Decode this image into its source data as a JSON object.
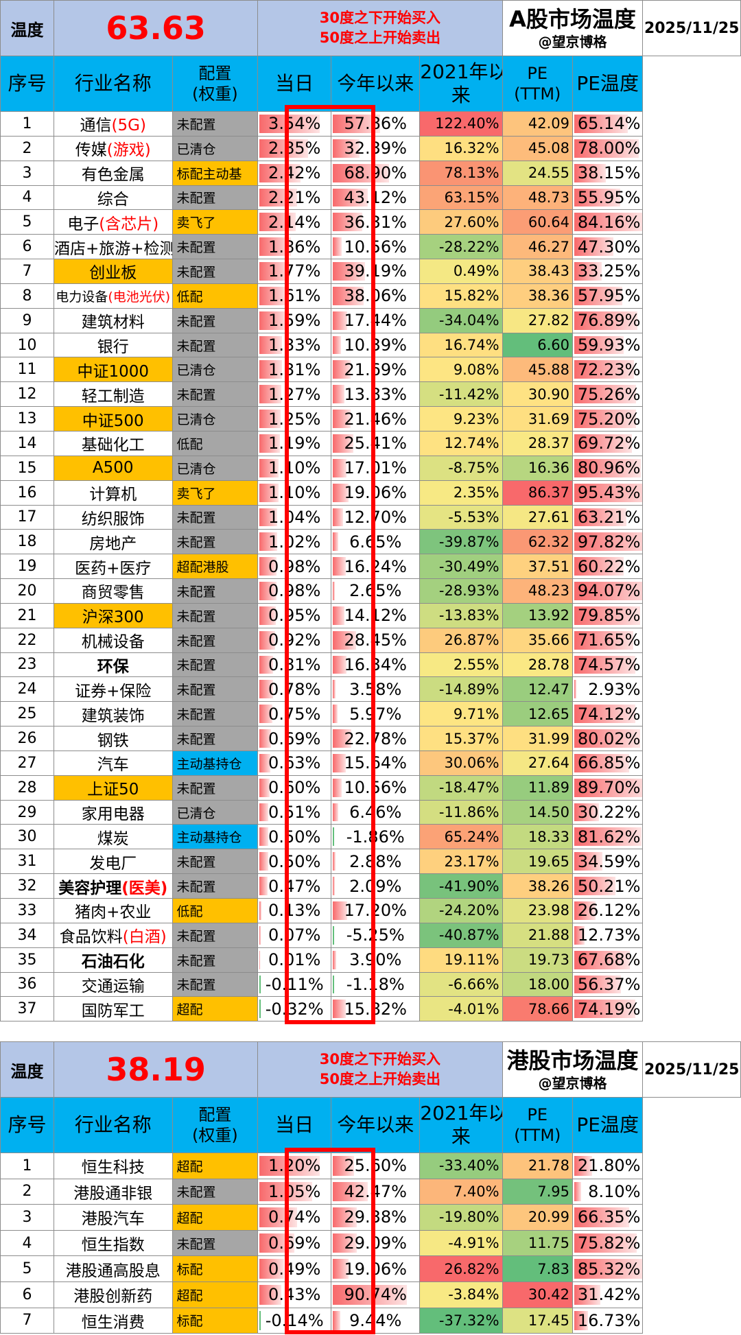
{
  "colors": {
    "header_blue": "#00b0f0",
    "lavender": "#b4c6e7",
    "orange": "#ffc000",
    "gray": "#a6a6a6",
    "red": "#ff0000",
    "bar_red": "#f8696b"
  },
  "a_market": {
    "label": "温度",
    "value": "63.63",
    "rule_line1": "30度之下开始买入",
    "rule_line2": "50度之上开始卖出",
    "title": "A股市场温度",
    "author": "@望京博格",
    "date": "2025/11/25",
    "headers": {
      "idx": "序号",
      "name": "行业名称",
      "cfg1": "配置",
      "cfg2": "(权重)",
      "day": "当日",
      "ytd": "今年以来",
      "r21a": "2021年以",
      "r21b": "来",
      "pe1": "PE",
      "pe2": "(TTM)",
      "pet": "PE温度"
    },
    "rows": [
      {
        "idx": "1",
        "name": "通信",
        "name_red": "(5G)",
        "name_bg": "",
        "cfg": "未配置",
        "cfg_bg": "gray",
        "day": "3.54%",
        "day_v": 3.54,
        "ytd": "57.86%",
        "ytd_v": 57.86,
        "r21": "122.40%",
        "r21_c": "#f8696b",
        "pe": "42.09",
        "pe_c": "#fdc47d",
        "pet": "65.14%",
        "pet_v": 65.14
      },
      {
        "idx": "2",
        "name": "传媒",
        "name_red": "(游戏)",
        "name_bg": "",
        "cfg": "已清仓",
        "cfg_bg": "gray",
        "day": "2.85%",
        "day_v": 2.85,
        "ytd": "32.39%",
        "ytd_v": 32.39,
        "r21": "16.32%",
        "r21_c": "#fedf81",
        "pe": "45.08",
        "pe_c": "#fdbc7b",
        "pet": "78.00%",
        "pet_v": 78.0
      },
      {
        "idx": "3",
        "name": "有色金属",
        "name_red": "",
        "name_bg": "",
        "cfg": "标配主动基",
        "cfg_bg": "orange",
        "day": "2.42%",
        "day_v": 2.42,
        "ytd": "68.90%",
        "ytd_v": 68.9,
        "r21": "78.13%",
        "r21_c": "#fa9473",
        "pe": "24.55",
        "pe_c": "#e3e383",
        "pet": "38.15%",
        "pet_v": 38.15
      },
      {
        "idx": "4",
        "name": "综合",
        "name_red": "",
        "name_bg": "",
        "cfg": "未配置",
        "cfg_bg": "gray",
        "day": "2.21%",
        "day_v": 2.21,
        "ytd": "43.12%",
        "ytd_v": 43.12,
        "r21": "63.15%",
        "r21_c": "#fba476",
        "pe": "48.73",
        "pe_c": "#fdb27a",
        "pet": "55.95%",
        "pet_v": 55.95
      },
      {
        "idx": "5",
        "name": "电子",
        "name_red": "(含芯片)",
        "name_bg": "",
        "cfg": "卖飞了",
        "cfg_bg": "orange",
        "day": "2.14%",
        "day_v": 2.14,
        "ytd": "36.31%",
        "ytd_v": 36.31,
        "r21": "27.60%",
        "r21_c": "#fdcb7d",
        "pe": "60.64",
        "pe_c": "#fb9d75",
        "pet": "84.16%",
        "pet_v": 84.16
      },
      {
        "idx": "6",
        "name": "酒店+旅游+检测",
        "name_red": "",
        "name_bg": "",
        "cfg": "未配置",
        "cfg_bg": "gray",
        "day": "1.86%",
        "day_v": 1.86,
        "ytd": "10.56%",
        "ytd_v": 10.56,
        "r21": "-28.22%",
        "r21_c": "#a6d17f",
        "pe": "46.27",
        "pe_c": "#fdb97b",
        "pet": "47.30%",
        "pet_v": 47.3
      },
      {
        "idx": "7",
        "name": "创业板",
        "name_red": "",
        "name_bg": "orange",
        "cfg": "未配置",
        "cfg_bg": "gray",
        "day": "1.77%",
        "day_v": 1.77,
        "ytd": "39.19%",
        "ytd_v": 39.19,
        "r21": "0.49%",
        "r21_c": "#f4e884",
        "pe": "38.43",
        "pe_c": "#fece7f",
        "pet": "33.25%",
        "pet_v": 33.25
      },
      {
        "idx": "8",
        "name": "电力设备",
        "name_red": "(电池光伏)",
        "name_bg": "",
        "small": true,
        "cfg": "低配",
        "cfg_bg": "orange",
        "day": "1.61%",
        "day_v": 1.61,
        "ytd": "38.06%",
        "ytd_v": 38.06,
        "r21": "15.82%",
        "r21_c": "#fee082",
        "pe": "38.36",
        "pe_c": "#fece7f",
        "pet": "57.95%",
        "pet_v": 57.95
      },
      {
        "idx": "9",
        "name": "建筑材料",
        "name_red": "",
        "name_bg": "",
        "cfg": "未配置",
        "cfg_bg": "gray",
        "day": "1.59%",
        "day_v": 1.59,
        "ytd": "17.44%",
        "ytd_v": 17.44,
        "r21": "-34.04%",
        "r21_c": "#94cb7e",
        "pe": "27.82",
        "pe_c": "#f7e784",
        "pet": "76.89%",
        "pet_v": 76.89
      },
      {
        "idx": "10",
        "name": "银行",
        "name_red": "",
        "name_bg": "",
        "cfg": "未配置",
        "cfg_bg": "gray",
        "day": "1.33%",
        "day_v": 1.33,
        "ytd": "10.39%",
        "ytd_v": 10.39,
        "r21": "16.74%",
        "r21_c": "#fedf81",
        "pe": "6.60",
        "pe_c": "#63be7b",
        "pet": "59.93%",
        "pet_v": 59.93
      },
      {
        "idx": "11",
        "name": "中证1000",
        "name_red": "",
        "name_bg": "orange",
        "cfg": "已清仓",
        "cfg_bg": "gray",
        "day": "1.31%",
        "day_v": 1.31,
        "ytd": "21.69%",
        "ytd_v": 21.69,
        "r21": "9.08%",
        "r21_c": "#fde583",
        "pe": "45.88",
        "pe_c": "#fdba7b",
        "pet": "72.23%",
        "pet_v": 72.23
      },
      {
        "idx": "12",
        "name": "轻工制造",
        "name_red": "",
        "name_bg": "",
        "cfg": "未配置",
        "cfg_bg": "gray",
        "day": "1.27%",
        "day_v": 1.27,
        "ytd": "13.83%",
        "ytd_v": 13.83,
        "r21": "-11.42%",
        "r21_c": "#d5df81",
        "pe": "30.90",
        "pe_c": "#fee283",
        "pet": "75.26%",
        "pet_v": 75.26
      },
      {
        "idx": "13",
        "name": "中证500",
        "name_red": "",
        "name_bg": "orange",
        "cfg": "已清仓",
        "cfg_bg": "gray",
        "day": "1.25%",
        "day_v": 1.25,
        "ytd": "21.46%",
        "ytd_v": 21.46,
        "r21": "9.23%",
        "r21_c": "#fde583",
        "pe": "31.69",
        "pe_c": "#fedf81",
        "pet": "75.20%",
        "pet_v": 75.2
      },
      {
        "idx": "14",
        "name": "基础化工",
        "name_red": "",
        "name_bg": "",
        "cfg": "低配",
        "cfg_bg": "gray",
        "day": "1.19%",
        "day_v": 1.19,
        "ytd": "25.41%",
        "ytd_v": 25.41,
        "r21": "12.74%",
        "r21_c": "#fee282",
        "pe": "28.37",
        "pe_c": "#f9e884",
        "pet": "69.72%",
        "pet_v": 69.72
      },
      {
        "idx": "15",
        "name": "A500",
        "name_red": "",
        "name_bg": "orange",
        "cfg": "已清仓",
        "cfg_bg": "gray",
        "day": "1.10%",
        "day_v": 1.1,
        "ytd": "17.01%",
        "ytd_v": 17.01,
        "r21": "-8.75%",
        "r21_c": "#dce182",
        "pe": "16.36",
        "pe_c": "#b7d680",
        "pet": "80.96%",
        "pet_v": 80.96
      },
      {
        "idx": "16",
        "name": "计算机",
        "name_red": "",
        "name_bg": "",
        "cfg": "卖飞了",
        "cfg_bg": "orange",
        "day": "1.10%",
        "day_v": 1.1,
        "ytd": "19.06%",
        "ytd_v": 19.06,
        "r21": "2.35%",
        "r21_c": "#f7e984",
        "pe": "86.37",
        "pe_c": "#f8696b",
        "pet": "95.43%",
        "pet_v": 95.43
      },
      {
        "idx": "17",
        "name": "纺织服饰",
        "name_red": "",
        "name_bg": "",
        "cfg": "未配置",
        "cfg_bg": "gray",
        "day": "1.04%",
        "day_v": 1.04,
        "ytd": "12.70%",
        "ytd_v": 12.7,
        "r21": "-5.53%",
        "r21_c": "#e5e483",
        "pe": "27.61",
        "pe_c": "#f5e784",
        "pet": "63.21%",
        "pet_v": 63.21
      },
      {
        "idx": "18",
        "name": "房地产",
        "name_red": "",
        "name_bg": "",
        "cfg": "未配置",
        "cfg_bg": "gray",
        "day": "1.02%",
        "day_v": 1.02,
        "ytd": "6.65%",
        "ytd_v": 6.65,
        "r21": "-39.87%",
        "r21_c": "#7ec47d",
        "pe": "62.32",
        "pe_c": "#fa9874",
        "pet": "97.82%",
        "pet_v": 97.82
      },
      {
        "idx": "19",
        "name": "医药+医疗",
        "name_red": "",
        "name_bg": "",
        "cfg": "超配港股",
        "cfg_bg": "orange",
        "day": "0.98%",
        "day_v": 0.98,
        "ytd": "16.24%",
        "ytd_v": 16.24,
        "r21": "-30.49%",
        "r21_c": "#a0cf7f",
        "pe": "37.51",
        "pe_c": "#fed17f",
        "pet": "60.22%",
        "pet_v": 60.22
      },
      {
        "idx": "20",
        "name": "商贸零售",
        "name_red": "",
        "name_bg": "",
        "cfg": "未配置",
        "cfg_bg": "gray",
        "day": "0.98%",
        "day_v": 0.98,
        "ytd": "2.65%",
        "ytd_v": 2.65,
        "r21": "-28.93%",
        "r21_c": "#a4d07f",
        "pe": "48.23",
        "pe_c": "#fdb37a",
        "pet": "94.07%",
        "pet_v": 94.07
      },
      {
        "idx": "21",
        "name": "沪深300",
        "name_red": "",
        "name_bg": "orange",
        "cfg": "未配置",
        "cfg_bg": "gray",
        "day": "0.95%",
        "day_v": 0.95,
        "ytd": "14.12%",
        "ytd_v": 14.12,
        "r21": "-13.83%",
        "r21_c": "#cedd81",
        "pe": "13.92",
        "pe_c": "#a4d07f",
        "pet": "79.85%",
        "pet_v": 79.85
      },
      {
        "idx": "22",
        "name": "机械设备",
        "name_red": "",
        "name_bg": "",
        "cfg": "未配置",
        "cfg_bg": "gray",
        "day": "0.92%",
        "day_v": 0.92,
        "ytd": "28.45%",
        "ytd_v": 28.45,
        "r21": "26.87%",
        "r21_c": "#fdcb7d",
        "pe": "35.66",
        "pe_c": "#fed680",
        "pet": "71.65%",
        "pet_v": 71.65
      },
      {
        "idx": "23",
        "name": "环保",
        "name_red": "",
        "name_bg": "",
        "bold": true,
        "cfg": "未配置",
        "cfg_bg": "gray",
        "day": "0.81%",
        "day_v": 0.81,
        "ytd": "16.34%",
        "ytd_v": 16.34,
        "r21": "2.55%",
        "r21_c": "#f7e984",
        "pe": "28.78",
        "pe_c": "#fae884",
        "pet": "74.57%",
        "pet_v": 74.57
      },
      {
        "idx": "24",
        "name": "证券+保险",
        "name_red": "",
        "name_bg": "",
        "cfg": "未配置",
        "cfg_bg": "gray",
        "day": "0.78%",
        "day_v": 0.78,
        "ytd": "3.58%",
        "ytd_v": 3.58,
        "r21": "-14.89%",
        "r21_c": "#cbdc81",
        "pe": "12.47",
        "pe_c": "#9acd7e",
        "pet": "2.93%",
        "pet_v": 2.93
      },
      {
        "idx": "25",
        "name": "建筑装饰",
        "name_red": "",
        "name_bg": "",
        "cfg": "未配置",
        "cfg_bg": "gray",
        "day": "0.75%",
        "day_v": 0.75,
        "ytd": "5.97%",
        "ytd_v": 5.97,
        "r21": "9.71%",
        "r21_c": "#fde583",
        "pe": "12.65",
        "pe_c": "#9bcd7e",
        "pet": "74.12%",
        "pet_v": 74.12
      },
      {
        "idx": "26",
        "name": "钢铁",
        "name_red": "",
        "name_bg": "",
        "cfg": "未配置",
        "cfg_bg": "gray",
        "day": "0.69%",
        "day_v": 0.69,
        "ytd": "22.78%",
        "ytd_v": 22.78,
        "r21": "15.37%",
        "r21_c": "#fee082",
        "pe": "31.99",
        "pe_c": "#fedf81",
        "pet": "80.02%",
        "pet_v": 80.02
      },
      {
        "idx": "27",
        "name": "汽车",
        "name_red": "",
        "name_bg": "",
        "cfg": "主动基持仓",
        "cfg_bg": "blue",
        "day": "0.63%",
        "day_v": 0.63,
        "ytd": "15.64%",
        "ytd_v": 15.64,
        "r21": "30.06%",
        "r21_c": "#fdc77d",
        "pe": "27.64",
        "pe_c": "#f5e784",
        "pet": "66.85%",
        "pet_v": 66.85
      },
      {
        "idx": "28",
        "name": "上证50",
        "name_red": "",
        "name_bg": "orange",
        "cfg": "未配置",
        "cfg_bg": "gray",
        "day": "0.60%",
        "day_v": 0.6,
        "ytd": "10.56%",
        "ytd_v": 10.56,
        "r21": "-18.47%",
        "r21_c": "#c1d980",
        "pe": "11.89",
        "pe_c": "#97cc7e",
        "pet": "89.70%",
        "pet_v": 89.7
      },
      {
        "idx": "29",
        "name": "家用电器",
        "name_red": "",
        "name_bg": "",
        "cfg": "已清仓",
        "cfg_bg": "gray",
        "day": "0.51%",
        "day_v": 0.51,
        "ytd": "6.46%",
        "ytd_v": 6.46,
        "r21": "-11.86%",
        "r21_c": "#d4de81",
        "pe": "14.50",
        "pe_c": "#a7d17f",
        "pet": "30.22%",
        "pet_v": 30.22
      },
      {
        "idx": "30",
        "name": "煤炭",
        "name_red": "",
        "name_bg": "",
        "cfg": "主动基持仓",
        "cfg_bg": "blue",
        "day": "0.50%",
        "day_v": 0.5,
        "ytd": "-1.86%",
        "ytd_v": -1.86,
        "r21": "65.24%",
        "r21_c": "#fba276",
        "pe": "18.33",
        "pe_c": "#c3da80",
        "pet": "81.62%",
        "pet_v": 81.62
      },
      {
        "idx": "31",
        "name": "发电厂",
        "name_red": "",
        "name_bg": "",
        "cfg": "未配置",
        "cfg_bg": "gray",
        "day": "0.50%",
        "day_v": 0.5,
        "ytd": "2.88%",
        "ytd_v": 2.88,
        "r21": "23.17%",
        "r21_c": "#fed07e",
        "pe": "19.65",
        "pe_c": "#cbdc81",
        "pet": "34.59%",
        "pet_v": 34.59
      },
      {
        "idx": "32",
        "name": "美容护理",
        "name_red": "(医美)",
        "name_bg": "",
        "bold": true,
        "cfg": "未配置",
        "cfg_bg": "gray",
        "day": "0.47%",
        "day_v": 0.47,
        "ytd": "2.09%",
        "ytd_v": 2.09,
        "r21": "-41.90%",
        "r21_c": "#78c27c",
        "pe": "38.26",
        "pe_c": "#fecf7f",
        "pet": "50.21%",
        "pet_v": 50.21
      },
      {
        "idx": "33",
        "name": "猪肉+农业",
        "name_red": "",
        "name_bg": "",
        "cfg": "低配",
        "cfg_bg": "orange",
        "day": "0.13%",
        "day_v": 0.13,
        "ytd": "17.20%",
        "ytd_v": 17.2,
        "r21": "-24.20%",
        "r21_c": "#b1d47f",
        "pe": "23.98",
        "pe_c": "#e1e283",
        "pet": "26.12%",
        "pet_v": 26.12
      },
      {
        "idx": "34",
        "name": "食品饮料",
        "name_red": "(白酒)",
        "name_bg": "",
        "cfg": "未配置",
        "cfg_bg": "gray",
        "day": "0.07%",
        "day_v": 0.07,
        "ytd": "-5.25%",
        "ytd_v": -5.25,
        "r21": "-40.87%",
        "r21_c": "#7bc37c",
        "pe": "21.88",
        "pe_c": "#d6df81",
        "pet": "12.73%",
        "pet_v": 12.73
      },
      {
        "idx": "35",
        "name": "石油石化",
        "name_red": "",
        "name_bg": "",
        "bold": true,
        "cfg": "未配置",
        "cfg_bg": "gray",
        "day": "0.01%",
        "day_v": 0.01,
        "ytd": "3.90%",
        "ytd_v": 3.9,
        "r21": "19.11%",
        "r21_c": "#fedb80",
        "pe": "19.73",
        "pe_c": "#cbdc81",
        "pet": "67.68%",
        "pet_v": 67.68
      },
      {
        "idx": "36",
        "name": "交通运输",
        "name_red": "",
        "name_bg": "",
        "cfg": "未配置",
        "cfg_bg": "gray",
        "day": "-0.11%",
        "day_v": -0.11,
        "ytd": "-1.18%",
        "ytd_v": -1.18,
        "r21": "-6.66%",
        "r21_c": "#e2e383",
        "pe": "18.00",
        "pe_c": "#c1d980",
        "pet": "56.37%",
        "pet_v": 56.37
      },
      {
        "idx": "37",
        "name": "国防军工",
        "name_red": "",
        "name_bg": "",
        "cfg": "超配",
        "cfg_bg": "orange",
        "day": "-0.32%",
        "day_v": -0.32,
        "ytd": "15.82%",
        "ytd_v": 15.82,
        "r21": "-4.01%",
        "r21_c": "#e9e583",
        "pe": "78.66",
        "pe_c": "#f97b6f",
        "pet": "74.19%",
        "pet_v": 74.19
      }
    ]
  },
  "h_market": {
    "label": "温度",
    "value": "38.19",
    "rule_line1": "30度之下开始买入",
    "rule_line2": "50度之上开始卖出",
    "title": "港股市场温度",
    "author": "@望京博格",
    "date": "2025/11/25",
    "headers": {
      "idx": "序号",
      "name": "行业名称",
      "cfg1": "配置",
      "cfg2": "(权重)",
      "day": "当日",
      "ytd": "今年以来",
      "r21a": "2021年以",
      "r21b": "来",
      "pe1": "PE",
      "pe2": "(TTM)",
      "pet": "PE温度"
    },
    "rows": [
      {
        "idx": "1",
        "name": "恒生科技",
        "name_red": "",
        "name_bg": "",
        "cfg": "超配",
        "cfg_bg": "orange",
        "day": "1.20%",
        "day_v": 1.2,
        "ytd": "25.60%",
        "ytd_v": 25.6,
        "r21": "-33.40%",
        "r21_c": "#96cc7e",
        "pe": "21.78",
        "pe_c": "#fdc37c",
        "pet": "21.80%",
        "pet_v": 21.8
      },
      {
        "idx": "2",
        "name": "港股通非银",
        "name_red": "",
        "name_bg": "",
        "cfg": "未配置",
        "cfg_bg": "gray",
        "day": "1.05%",
        "day_v": 1.05,
        "ytd": "42.47%",
        "ytd_v": 42.47,
        "r21": "7.40%",
        "r21_c": "#fcb67a",
        "pe": "7.95",
        "pe_c": "#74c17c",
        "pet": "8.10%",
        "pet_v": 8.1
      },
      {
        "idx": "3",
        "name": "港股汽车",
        "name_red": "",
        "name_bg": "",
        "cfg": "超配",
        "cfg_bg": "orange",
        "day": "0.74%",
        "day_v": 0.74,
        "ytd": "29.38%",
        "ytd_v": 29.38,
        "r21": "-19.80%",
        "r21_c": "#c3da80",
        "pe": "20.99",
        "pe_c": "#fdc67d",
        "pet": "66.35%",
        "pet_v": 66.35
      },
      {
        "idx": "4",
        "name": "恒生指数",
        "name_red": "",
        "name_bg": "",
        "cfg": "未配置",
        "cfg_bg": "gray",
        "day": "0.69%",
        "day_v": 0.69,
        "ytd": "29.09%",
        "ytd_v": 29.09,
        "r21": "-4.91%",
        "r21_c": "#f6e884",
        "pe": "11.75",
        "pe_c": "#a7d17f",
        "pet": "75.82%",
        "pet_v": 75.82
      },
      {
        "idx": "5",
        "name": "港股通高股息",
        "name_red": "",
        "name_bg": "",
        "cfg": "标配",
        "cfg_bg": "orange",
        "day": "0.49%",
        "day_v": 0.49,
        "ytd": "19.06%",
        "ytd_v": 19.06,
        "r21": "26.82%",
        "r21_c": "#f8696b",
        "pe": "7.83",
        "pe_c": "#63be7b",
        "pet": "85.32%",
        "pet_v": 85.32
      },
      {
        "idx": "6",
        "name": "港股创新药",
        "name_red": "",
        "name_bg": "",
        "cfg": "超配",
        "cfg_bg": "orange",
        "day": "0.43%",
        "day_v": 0.43,
        "ytd": "90.74%",
        "ytd_v": 90.74,
        "r21": "-3.84%",
        "r21_c": "#f8e984",
        "pe": "30.42",
        "pe_c": "#f8696b",
        "pet": "31.42%",
        "pet_v": 31.42
      },
      {
        "idx": "7",
        "name": "恒生消费",
        "name_red": "",
        "name_bg": "",
        "cfg": "标配",
        "cfg_bg": "orange",
        "day": "-0.14%",
        "day_v": -0.14,
        "ytd": "9.44%",
        "ytd_v": 9.44,
        "r21": "-37.32%",
        "r21_c": "#63be7b",
        "pe": "17.45",
        "pe_c": "#dde283",
        "pet": "16.73%",
        "pet_v": 16.73
      }
    ]
  }
}
